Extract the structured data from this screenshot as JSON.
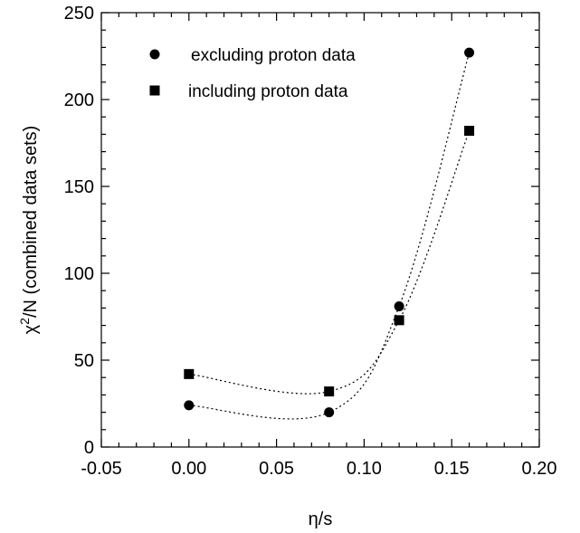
{
  "chart_data": {
    "type": "scatter",
    "xlabel": "η/s",
    "ylabel_chi": "χ",
    "ylabel_sup": "2",
    "ylabel_rest": "/N (combined data sets)",
    "xlim": [
      -0.05,
      0.2
    ],
    "ylim": [
      0,
      250
    ],
    "x_ticks": [
      -0.05,
      0.0,
      0.05,
      0.1,
      0.15,
      0.2
    ],
    "x_tick_labels": [
      "-0.05",
      "0.00",
      "0.05",
      "0.10",
      "0.15",
      "0.20"
    ],
    "y_ticks": [
      0,
      50,
      100,
      150,
      200,
      250
    ],
    "y_tick_labels": [
      "0",
      "50",
      "100",
      "150",
      "200",
      "250"
    ],
    "grid": false,
    "legend_position": "top-left",
    "series": [
      {
        "name": "excluding proton data",
        "marker": "circle",
        "x": [
          0.0,
          0.08,
          0.12,
          0.16
        ],
        "y": [
          24,
          20,
          81,
          227
        ],
        "curve": "dotted"
      },
      {
        "name": "including proton data",
        "marker": "square",
        "x": [
          0.0,
          0.08,
          0.12,
          0.16
        ],
        "y": [
          42,
          32,
          73,
          182
        ],
        "curve": "dotted"
      }
    ]
  }
}
